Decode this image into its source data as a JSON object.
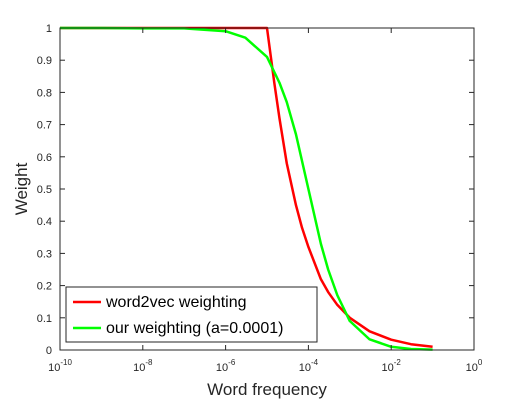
{
  "chart_data": {
    "type": "line",
    "xlabel": "Word frequency",
    "ylabel": "Weight",
    "x_scale": "log",
    "xlim": [
      1e-10,
      1
    ],
    "ylim": [
      0,
      1
    ],
    "x_ticks": [
      {
        "value": 1e-10,
        "base": "10",
        "exp": "-10"
      },
      {
        "value": 1e-08,
        "base": "10",
        "exp": "-8"
      },
      {
        "value": 1e-06,
        "base": "10",
        "exp": "-6"
      },
      {
        "value": 0.0001,
        "base": "10",
        "exp": "-4"
      },
      {
        "value": 0.01,
        "base": "10",
        "exp": "-2"
      },
      {
        "value": 1,
        "base": "10",
        "exp": "0"
      }
    ],
    "y_ticks": [
      {
        "value": 0,
        "label": "0"
      },
      {
        "value": 0.1,
        "label": "0.1"
      },
      {
        "value": 0.2,
        "label": "0.2"
      },
      {
        "value": 0.3,
        "label": "0.3"
      },
      {
        "value": 0.4,
        "label": "0.4"
      },
      {
        "value": 0.5,
        "label": "0.5"
      },
      {
        "value": 0.6,
        "label": "0.6"
      },
      {
        "value": 0.7,
        "label": "0.7"
      },
      {
        "value": 0.8,
        "label": "0.8"
      },
      {
        "value": 0.9,
        "label": "0.9"
      },
      {
        "value": 1,
        "label": "1"
      }
    ],
    "grid": false,
    "legend_position": "bottom-left",
    "series": [
      {
        "name": "word2vec weighting",
        "color": "#ff0000",
        "x": [
          1e-10,
          1e-09,
          1e-08,
          1e-07,
          1e-06,
          5e-06,
          1e-05,
          1.5e-05,
          2e-05,
          3e-05,
          5e-05,
          7e-05,
          0.0001,
          0.0002,
          0.0003,
          0.0005,
          0.001,
          0.003,
          0.01,
          0.03,
          0.1
        ],
        "y": [
          1,
          1,
          1,
          1,
          1,
          1,
          1,
          0.83,
          0.72,
          0.58,
          0.45,
          0.38,
          0.32,
          0.22,
          0.18,
          0.14,
          0.1,
          0.058,
          0.032,
          0.018,
          0.01
        ]
      },
      {
        "name": "our weighting (a=0.0001)",
        "color": "#00ff00",
        "x": [
          1e-10,
          1e-09,
          1e-08,
          1e-07,
          1e-06,
          3e-06,
          1e-05,
          2e-05,
          3e-05,
          5e-05,
          0.0001,
          0.0002,
          0.0003,
          0.0005,
          0.001,
          0.003,
          0.01,
          0.03,
          0.1
        ],
        "y": [
          1,
          1,
          0.999,
          0.999,
          0.99,
          0.97,
          0.91,
          0.83,
          0.77,
          0.67,
          0.5,
          0.33,
          0.25,
          0.17,
          0.09,
          0.033,
          0.01,
          0.003,
          0.001
        ]
      }
    ]
  }
}
